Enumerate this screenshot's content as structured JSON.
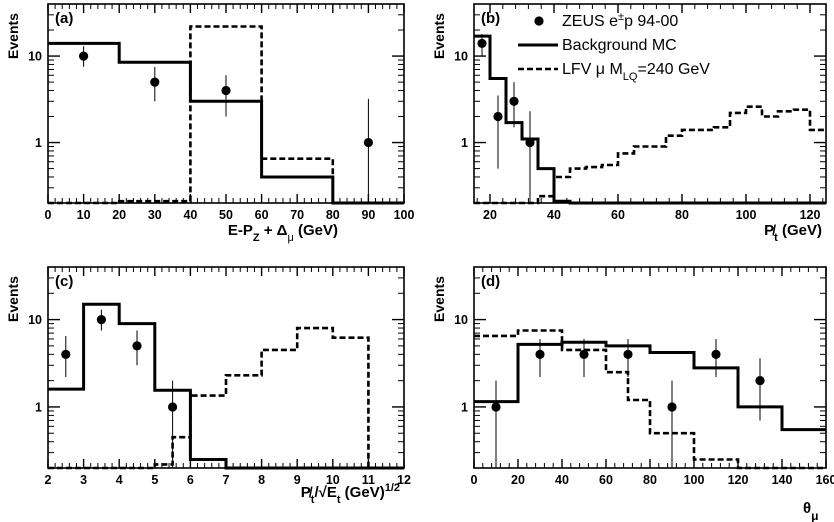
{
  "chart_data": [
    {
      "type": "histogram",
      "panel_label": "(a)",
      "ylabel": "Events",
      "xlabel": "E-P_Z + Δ_μ (GeV)",
      "xlim": [
        0,
        100
      ],
      "ylim_log": [
        0.2,
        40
      ],
      "x_ticks": [
        0,
        10,
        20,
        30,
        40,
        50,
        60,
        70,
        80,
        90,
        100
      ],
      "y_tick_labels": [
        "1",
        "10"
      ],
      "data_points": [
        {
          "x": 10,
          "y": 10,
          "err_low": 7.5,
          "err_high": 13
        },
        {
          "x": 30,
          "y": 5,
          "err_low": 3,
          "err_high": 7.5
        },
        {
          "x": 50,
          "y": 4,
          "err_low": 2,
          "err_high": 6
        },
        {
          "x": 90,
          "y": 1,
          "err_low": 0.15,
          "err_high": 3.2
        }
      ],
      "background_mc": {
        "bin_edges": [
          0,
          20,
          40,
          60,
          80,
          100
        ],
        "values": [
          14,
          8.5,
          3,
          0.4,
          0.2
        ]
      },
      "lfv_signal": {
        "bin_edges": [
          0,
          20,
          40,
          60,
          80,
          100
        ],
        "values": [
          0.2,
          0.21,
          22,
          0.65,
          0.2
        ]
      }
    },
    {
      "type": "histogram",
      "panel_label": "(b)",
      "ylabel": "Events",
      "xlabel": "P̸_t (GeV)",
      "xlim": [
        15,
        125
      ],
      "ylim_log": [
        0.2,
        40
      ],
      "x_ticks": [
        20,
        40,
        60,
        80,
        100,
        120
      ],
      "y_tick_labels": [
        "1",
        "10"
      ],
      "legend": {
        "placement": "top-right",
        "entries": [
          {
            "label": "ZEUS e",
            "sup": "±",
            "suffix": "p 94-00",
            "style": "marker"
          },
          {
            "label": "Background MC",
            "style": "solid"
          },
          {
            "label": "LFV μ  M",
            "sub": "LQ",
            "suffix": "=240 GeV",
            "style": "dashed"
          }
        ]
      },
      "data_points": [
        {
          "x": 17.5,
          "y": 14,
          "err_low": 10,
          "err_high": 18
        },
        {
          "x": 22.5,
          "y": 2,
          "err_low": 0.5,
          "err_high": 3.5
        },
        {
          "x": 27.5,
          "y": 3,
          "err_low": 1.5,
          "err_high": 5
        },
        {
          "x": 32.5,
          "y": 1,
          "err_low": 0.15,
          "err_high": 2.3
        }
      ],
      "background_mc": {
        "bin_edges": [
          15,
          20,
          25,
          30,
          35,
          40,
          45,
          125
        ],
        "values": [
          17,
          5.5,
          1.7,
          1.1,
          0.5,
          0.21,
          0.2
        ]
      },
      "lfv_signal": {
        "bin_edges": [
          15,
          35,
          40,
          45,
          50,
          55,
          60,
          65,
          70,
          75,
          80,
          85,
          90,
          95,
          100,
          105,
          110,
          115,
          120,
          125
        ],
        "values": [
          0.2,
          0.24,
          0.4,
          0.5,
          0.52,
          0.55,
          0.75,
          0.9,
          0.9,
          1.2,
          1.4,
          1.4,
          1.5,
          2.2,
          2.6,
          2.0,
          2.3,
          2.4,
          1.4
        ]
      }
    },
    {
      "type": "histogram",
      "panel_label": "(c)",
      "ylabel": "Events",
      "xlabel": "P̸_t/√E_t (GeV)^1/2",
      "xlim": [
        2,
        12
      ],
      "ylim_log": [
        0.2,
        40
      ],
      "x_ticks": [
        2,
        3,
        4,
        5,
        6,
        7,
        8,
        9,
        10,
        11,
        12
      ],
      "y_tick_labels": [
        "1",
        "10"
      ],
      "data_points": [
        {
          "x": 2.5,
          "y": 4,
          "err_low": 2.2,
          "err_high": 6.5
        },
        {
          "x": 3.5,
          "y": 10,
          "err_low": 7.5,
          "err_high": 13
        },
        {
          "x": 4.5,
          "y": 5,
          "err_low": 3,
          "err_high": 7.5
        },
        {
          "x": 5.5,
          "y": 1,
          "err_low": 0.15,
          "err_high": 2
        }
      ],
      "background_mc": {
        "bin_edges": [
          2,
          3,
          4,
          5,
          6,
          7,
          12
        ],
        "values": [
          1.6,
          15,
          9,
          1.55,
          0.25,
          0.2
        ]
      },
      "lfv_signal": {
        "bin_edges": [
          2,
          5,
          5.5,
          6,
          7,
          8,
          9,
          10,
          11,
          12
        ],
        "values": [
          0.2,
          0.22,
          0.45,
          1.35,
          2.3,
          4.5,
          8,
          6.2,
          0.2
        ]
      }
    },
    {
      "type": "histogram",
      "panel_label": "(d)",
      "ylabel": "Events",
      "xlabel": "θ_μ",
      "xlim": [
        0,
        160
      ],
      "ylim_log": [
        0.2,
        40
      ],
      "x_ticks": [
        0,
        20,
        40,
        60,
        80,
        100,
        120,
        140,
        160
      ],
      "y_tick_labels": [
        "1",
        "10"
      ],
      "data_points": [
        {
          "x": 10,
          "y": 1,
          "err_low": 0.15,
          "err_high": 2
        },
        {
          "x": 30,
          "y": 4,
          "err_low": 2.2,
          "err_high": 6
        },
        {
          "x": 50,
          "y": 4,
          "err_low": 2.2,
          "err_high": 6
        },
        {
          "x": 70,
          "y": 4,
          "err_low": 2.2,
          "err_high": 6
        },
        {
          "x": 90,
          "y": 1,
          "err_low": 0.15,
          "err_high": 2
        },
        {
          "x": 110,
          "y": 4,
          "err_low": 2.2,
          "err_high": 6
        },
        {
          "x": 130,
          "y": 2,
          "err_low": 0.7,
          "err_high": 3.6
        }
      ],
      "background_mc": {
        "bin_edges": [
          0,
          20,
          40,
          60,
          80,
          100,
          120,
          140,
          160
        ],
        "values": [
          1.15,
          5.2,
          5.5,
          5,
          4.2,
          2.8,
          1.0,
          0.55
        ]
      },
      "lfv_signal": {
        "bin_edges": [
          0,
          20,
          40,
          60,
          70,
          80,
          100,
          120,
          160
        ],
        "values": [
          6.5,
          7.5,
          4.5,
          2.5,
          1.2,
          0.5,
          0.25,
          0.2
        ]
      }
    }
  ]
}
